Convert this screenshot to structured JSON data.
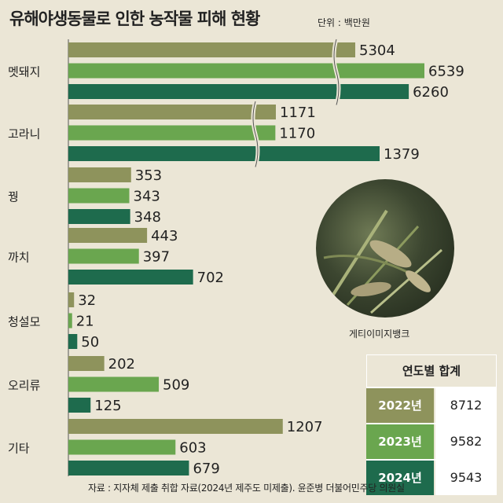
{
  "title": "유해야생동물로 인한 농작물 피해 현황",
  "unit": "단위 : 백만원",
  "photo_credit": "게티이미지뱅크",
  "source": "자료 : 지자체 제출 취합 자료(2024년 제주도 미제출). 윤준병 더불어민주당 의원실",
  "colors": {
    "y2022": "#8e935c",
    "y2023": "#6aa64f",
    "y2024": "#1e6b4d"
  },
  "totals": {
    "title": "연도별 합계",
    "rows": [
      {
        "year": "2022년",
        "value": "8712"
      },
      {
        "year": "2023년",
        "value": "9582"
      },
      {
        "year": "2024년",
        "value": "9543"
      }
    ]
  },
  "chart_data": {
    "type": "bar",
    "orientation": "horizontal",
    "categories": [
      "멧돼지",
      "고라니",
      "꿩",
      "까치",
      "청설모",
      "오리류",
      "기타"
    ],
    "series": [
      {
        "name": "2022년",
        "values": [
          5304,
          1171,
          353,
          443,
          32,
          202,
          1207
        ]
      },
      {
        "name": "2023년",
        "values": [
          6539,
          1170,
          343,
          397,
          21,
          509,
          603
        ]
      },
      {
        "name": "2024년",
        "values": [
          6260,
          1379,
          348,
          702,
          50,
          125,
          679
        ]
      }
    ],
    "axis_break": true
  }
}
